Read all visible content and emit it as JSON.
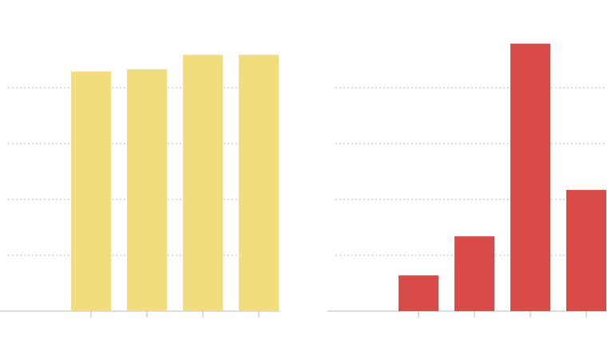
{
  "chart_data": [
    {
      "type": "bar",
      "categories": [
        null,
        null,
        null,
        null
      ],
      "values": [
        4.29,
        4.33,
        4.59,
        4.59
      ],
      "color": "#f2dd7d",
      "ylim": [
        0,
        5
      ],
      "yticks": [
        1,
        2,
        3,
        4
      ],
      "grid": true
    },
    {
      "type": "bar",
      "categories": [
        null,
        null,
        null,
        null
      ],
      "values": [
        0.64,
        1.34,
        4.79,
        2.17
      ],
      "color": "#d94b48",
      "ylim": [
        0,
        5
      ],
      "yticks": [
        1,
        2,
        3,
        4
      ],
      "grid": true
    }
  ]
}
